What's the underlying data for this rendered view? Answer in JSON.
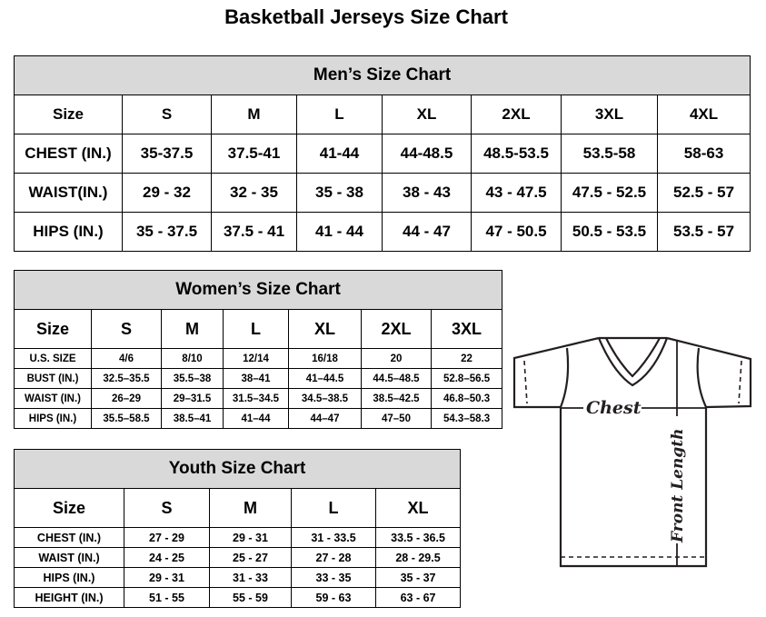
{
  "title": "Basketball Jerseys Size Chart",
  "men": {
    "heading": "Men’s Size Chart",
    "header": [
      "Size",
      "S",
      "M",
      "L",
      "XL",
      "2XL",
      "3XL",
      "4XL"
    ],
    "rows": [
      [
        "CHEST (IN.)",
        "35-37.5",
        "37.5-41",
        "41-44",
        "44-48.5",
        "48.5-53.5",
        "53.5-58",
        "58-63"
      ],
      [
        "WAIST(IN.)",
        "29 - 32",
        "32 - 35",
        "35 - 38",
        "38 - 43",
        "43 - 47.5",
        "47.5 - 52.5",
        "52.5 - 57"
      ],
      [
        "HIPS (IN.)",
        "35 - 37.5",
        "37.5 - 41",
        "41 - 44",
        "44 - 47",
        "47 - 50.5",
        "50.5 - 53.5",
        "53.5 - 57"
      ]
    ]
  },
  "women": {
    "heading": "Women’s Size Chart",
    "header": [
      "Size",
      "S",
      "M",
      "L",
      "XL",
      "2XL",
      "3XL"
    ],
    "rows": [
      [
        "U.S. SIZE",
        "4/6",
        "8/10",
        "12/14",
        "16/18",
        "20",
        "22"
      ],
      [
        "BUST (IN.)",
        "32.5–35.5",
        "35.5–38",
        "38–41",
        "41–44.5",
        "44.5–48.5",
        "52.8–56.5"
      ],
      [
        "WAIST (IN.)",
        "26–29",
        "29–31.5",
        "31.5–34.5",
        "34.5–38.5",
        "38.5–42.5",
        "46.8–50.3"
      ],
      [
        "HIPS (IN.)",
        "35.5–58.5",
        "38.5–41",
        "41–44",
        "44–47",
        "47–50",
        "54.3–58.3"
      ]
    ]
  },
  "youth": {
    "heading": "Youth Size Chart",
    "header": [
      "Size",
      "S",
      "M",
      "L",
      "XL"
    ],
    "rows": [
      [
        "CHEST (IN.)",
        "27 - 29",
        "29 - 31",
        "31 - 33.5",
        "33.5 - 36.5"
      ],
      [
        "WAIST (IN.)",
        "24 - 25",
        "25 - 27",
        "27 - 28",
        "28 - 29.5"
      ],
      [
        "HIPS (IN.)",
        "29 - 31",
        "31 - 33",
        "33 - 35",
        "35 - 37"
      ],
      [
        "HEIGHT (IN.)",
        "51 - 55",
        "55 - 59",
        "59 - 63",
        "63 - 67"
      ]
    ]
  },
  "diagram": {
    "chest_label": "Chest",
    "length_label": "Front Length"
  },
  "colors": {
    "header_bg": "#d9d9d9",
    "line": "#231f20"
  }
}
